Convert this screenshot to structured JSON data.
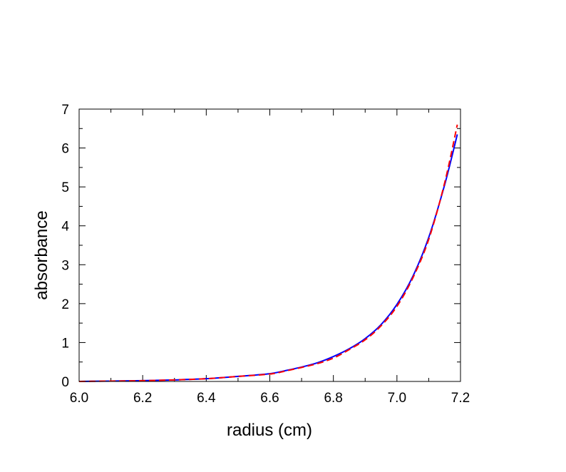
{
  "chart_data": {
    "type": "line",
    "title": "",
    "xlabel": "radius (cm)",
    "ylabel": "absorbance",
    "xlim": [
      6.0,
      7.2
    ],
    "ylim": [
      0,
      7
    ],
    "x_ticks": [
      "6.0",
      "6.2",
      "6.4",
      "6.6",
      "6.8",
      "7.0",
      "7.2"
    ],
    "y_ticks": [
      "0",
      "1",
      "2",
      "3",
      "4",
      "5",
      "6",
      "7"
    ],
    "grid": false,
    "legend": "none",
    "series": [
      {
        "style": "solid",
        "color": "#0000ff",
        "x": [
          6.0,
          6.1,
          6.2,
          6.3,
          6.4,
          6.5,
          6.6,
          6.65,
          6.7,
          6.75,
          6.8,
          6.85,
          6.9,
          6.95,
          7.0,
          7.05,
          7.1,
          7.15,
          7.19
        ],
        "y": [
          0.0,
          0.01,
          0.02,
          0.04,
          0.07,
          0.13,
          0.2,
          0.28,
          0.37,
          0.48,
          0.64,
          0.84,
          1.1,
          1.46,
          1.98,
          2.7,
          3.7,
          5.05,
          6.35
        ]
      },
      {
        "style": "dashed",
        "color": "#ff0000",
        "x": [
          6.0,
          6.1,
          6.2,
          6.3,
          6.4,
          6.5,
          6.6,
          6.65,
          6.7,
          6.75,
          6.8,
          6.85,
          6.9,
          6.95,
          7.0,
          7.05,
          7.1,
          7.15,
          7.19
        ],
        "y": [
          0.0,
          0.01,
          0.02,
          0.04,
          0.07,
          0.13,
          0.19,
          0.27,
          0.36,
          0.46,
          0.6,
          0.82,
          1.07,
          1.43,
          1.93,
          2.66,
          3.65,
          5.1,
          6.6
        ]
      }
    ]
  }
}
